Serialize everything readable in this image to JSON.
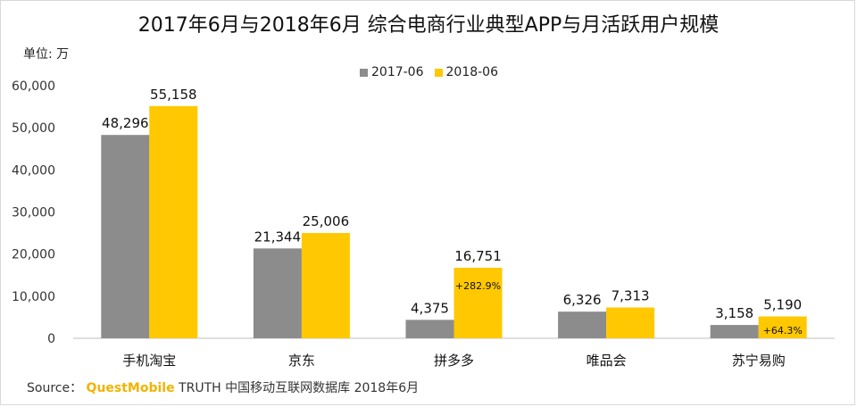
{
  "chart_data": {
    "type": "bar",
    "title": "2017年6月与2018年6月 综合电商行业典型APP与月活跃用户规模",
    "unit_label": "单位: 万",
    "categories": [
      "手机淘宝",
      "京东",
      "拼多多",
      "唯品会",
      "苏宁易购"
    ],
    "series": [
      {
        "name": "2017-06",
        "color": "#8c8c8c",
        "values": [
          48296,
          21344,
          4375,
          6326,
          3158
        ]
      },
      {
        "name": "2018-06",
        "color": "#ffc800",
        "values": [
          55158,
          25006,
          16751,
          7313,
          5190
        ]
      }
    ],
    "annotations": [
      {
        "category": "拼多多",
        "series": "2018-06",
        "text": "+282.9%"
      },
      {
        "category": "苏宁易购",
        "series": "2018-06",
        "text": "+64.3%"
      }
    ],
    "ylim": [
      0,
      60000
    ],
    "yticks": [
      "0",
      "10,000",
      "20,000",
      "30,000",
      "40,000",
      "50,000",
      "60,000"
    ],
    "xlabel": "",
    "ylabel": "",
    "legend_position": "top-center",
    "grid": false
  },
  "source": {
    "prefix": "Source：",
    "brand": "QuestMobile",
    "rest": "TRUTH 中国移动互联网数据库 2018年6月"
  }
}
